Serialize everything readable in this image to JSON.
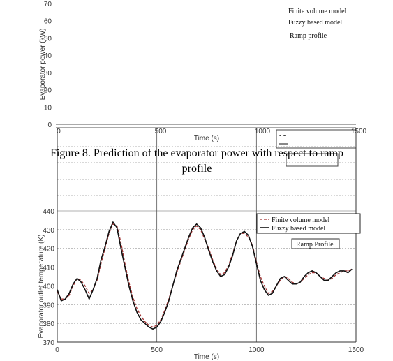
{
  "top_figure": {
    "ylabel": "Evaporator power (kW)",
    "xlabel": "Time (s)",
    "y_ticks": [
      "70",
      "60",
      "50",
      "40",
      "30",
      "20",
      "10",
      "0"
    ],
    "x_ticks": [
      "0",
      "500",
      "1000",
      "1500"
    ],
    "legend": [
      "Finite volume model",
      "Fuzzy based model"
    ],
    "profile_label": "Ramp profile",
    "caption_line1": "Figure 8. Prediction of the evaporator power with respect to ramp",
    "caption_line2": "profile"
  },
  "chart_data": {
    "type": "line",
    "title": "",
    "xlabel": "Time (s)",
    "ylabel": "Evaporator outlet temperature (K)",
    "xlim": [
      0,
      1500
    ],
    "ylim": [
      370,
      440
    ],
    "x_ticks": [
      "0",
      "500",
      "1000",
      "1500"
    ],
    "y_ticks": [
      "440",
      "430",
      "420",
      "410",
      "400",
      "390",
      "380",
      "370"
    ],
    "legend": [
      "Finite volume model",
      "Fuzzy based model"
    ],
    "profile_label": "Ramp Profile",
    "legend_placement": "top-right",
    "series": [
      {
        "name": "Finite volume model",
        "color": "#a03030",
        "style": "dashed",
        "x": [
          0,
          20,
          40,
          60,
          80,
          100,
          120,
          140,
          160,
          180,
          200,
          220,
          240,
          260,
          280,
          300,
          320,
          340,
          360,
          380,
          400,
          420,
          440,
          460,
          480,
          500,
          520,
          540,
          560,
          580,
          600,
          620,
          640,
          660,
          680,
          700,
          720,
          740,
          760,
          780,
          800,
          820,
          840,
          860,
          880,
          900,
          920,
          940,
          960,
          980,
          1000,
          1020,
          1040,
          1060,
          1080,
          1100,
          1120,
          1140,
          1160,
          1180,
          1200,
          1220,
          1240,
          1260,
          1280,
          1300,
          1320,
          1340,
          1360,
          1380,
          1400,
          1420,
          1440,
          1460,
          1480
        ],
        "values": [
          397,
          393,
          393,
          395,
          400,
          404,
          403,
          400,
          396,
          398,
          403,
          412,
          420,
          428,
          433,
          432,
          423,
          412,
          402,
          394,
          388,
          384,
          381,
          379,
          378,
          379,
          382,
          387,
          393,
          400,
          407,
          413,
          419,
          425,
          430,
          432,
          430,
          425,
          420,
          414,
          409,
          406,
          407,
          411,
          417,
          424,
          428,
          428,
          426,
          422,
          413,
          405,
          400,
          396,
          397,
          400,
          403,
          405,
          404,
          402,
          401,
          402,
          404,
          406,
          407,
          407,
          405,
          404,
          403,
          404,
          406,
          407,
          408,
          408,
          409
        ]
      },
      {
        "name": "Fuzzy based model",
        "color": "#111111",
        "style": "solid",
        "x": [
          0,
          20,
          40,
          60,
          80,
          100,
          120,
          140,
          160,
          180,
          200,
          220,
          240,
          260,
          280,
          300,
          320,
          340,
          360,
          380,
          400,
          420,
          440,
          460,
          480,
          500,
          520,
          540,
          560,
          580,
          600,
          620,
          640,
          660,
          680,
          700,
          720,
          740,
          760,
          780,
          800,
          820,
          840,
          860,
          880,
          900,
          920,
          940,
          960,
          980,
          1000,
          1020,
          1040,
          1060,
          1080,
          1100,
          1120,
          1140,
          1160,
          1180,
          1200,
          1220,
          1240,
          1260,
          1280,
          1300,
          1320,
          1340,
          1360,
          1380,
          1400,
          1420,
          1440,
          1460,
          1480
        ],
        "values": [
          398,
          392,
          393,
          396,
          401,
          404,
          402,
          398,
          393,
          398,
          404,
          414,
          421,
          429,
          434,
          431,
          420,
          410,
          400,
          392,
          386,
          382,
          380,
          378,
          377,
          378,
          381,
          386,
          392,
          400,
          408,
          414,
          420,
          426,
          431,
          433,
          431,
          426,
          419,
          413,
          408,
          405,
          406,
          410,
          416,
          424,
          428,
          429,
          427,
          421,
          412,
          403,
          398,
          395,
          396,
          400,
          404,
          405,
          403,
          401,
          401,
          402,
          405,
          407,
          408,
          407,
          405,
          403,
          403,
          405,
          407,
          408,
          408,
          407,
          409
        ]
      }
    ]
  }
}
